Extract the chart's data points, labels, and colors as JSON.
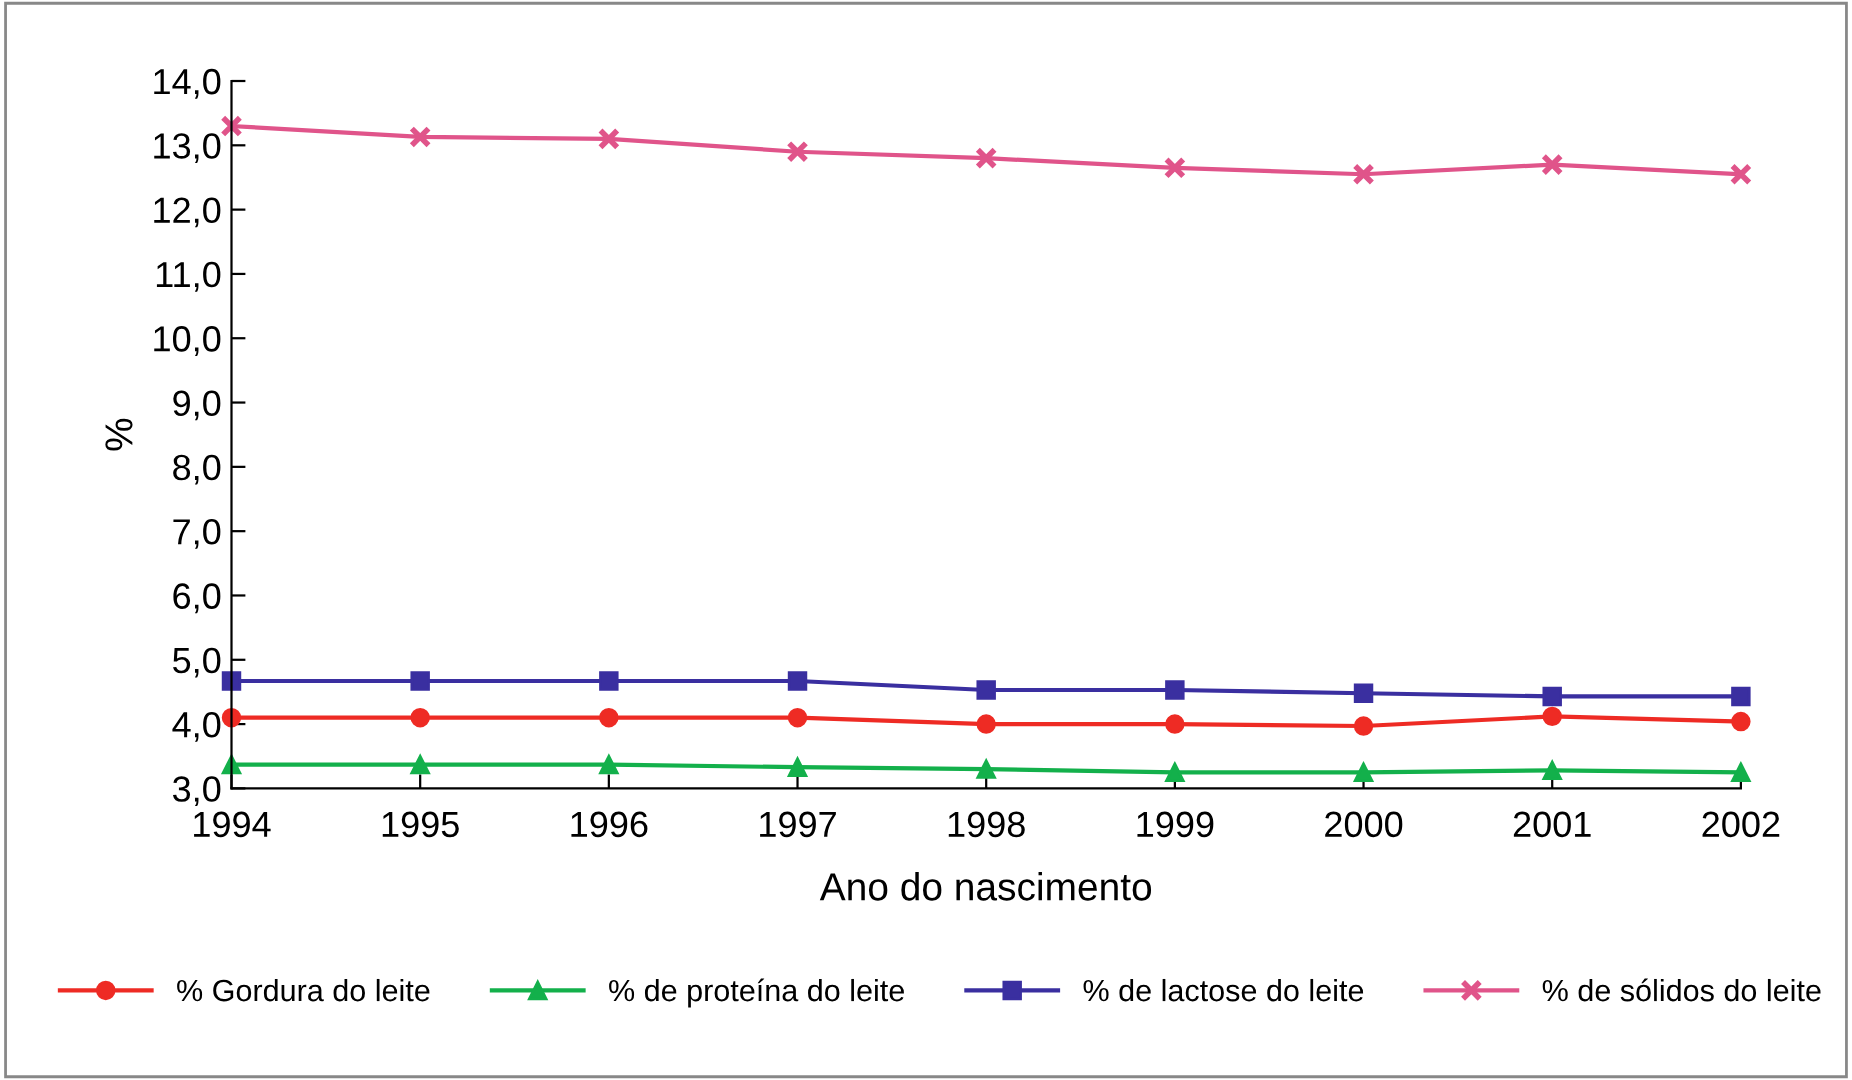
{
  "chart_data": {
    "type": "line",
    "xlabel": "Ano do nascimento",
    "ylabel": "%",
    "categories": [
      "1994",
      "1995",
      "1996",
      "1997",
      "1998",
      "1999",
      "2000",
      "2001",
      "2002"
    ],
    "series": [
      {
        "name": "% Gordura do leite",
        "color": "#ee2b24",
        "marker": "circle",
        "values": [
          4.1,
          4.1,
          4.1,
          4.1,
          4.0,
          4.0,
          3.97,
          4.12,
          4.04
        ]
      },
      {
        "name": "% de proteína do leite",
        "color": "#13b04b",
        "marker": "triangle",
        "values": [
          3.37,
          3.37,
          3.37,
          3.33,
          3.3,
          3.25,
          3.25,
          3.28,
          3.25
        ]
      },
      {
        "name": "% de lactose do leite",
        "color": "#3a2fa0",
        "marker": "square",
        "values": [
          4.67,
          4.67,
          4.67,
          4.67,
          4.53,
          4.53,
          4.48,
          4.43,
          4.43
        ]
      },
      {
        "name": "% de sólidos do leite",
        "color": "#e0548a",
        "marker": "cross",
        "values": [
          13.3,
          13.13,
          13.1,
          12.9,
          12.8,
          12.65,
          12.55,
          12.7,
          12.55
        ]
      }
    ],
    "ylim": [
      3.0,
      14.0
    ],
    "yticks": [
      {
        "value": 3,
        "label": "3,0"
      },
      {
        "value": 4,
        "label": "4,0"
      },
      {
        "value": 5,
        "label": "5,0"
      },
      {
        "value": 6,
        "label": "6,0"
      },
      {
        "value": 7,
        "label": "7,0"
      },
      {
        "value": 8,
        "label": "8,0"
      },
      {
        "value": 9,
        "label": "9,0"
      },
      {
        "value": 10,
        "label": "10,0"
      },
      {
        "value": 11,
        "label": "11,0"
      },
      {
        "value": 12,
        "label": "12,0"
      },
      {
        "value": 13,
        "label": "13,0"
      },
      {
        "value": 14,
        "label": "14,0"
      }
    ],
    "grid": false,
    "legend": "bottom",
    "line_style": "solid"
  }
}
